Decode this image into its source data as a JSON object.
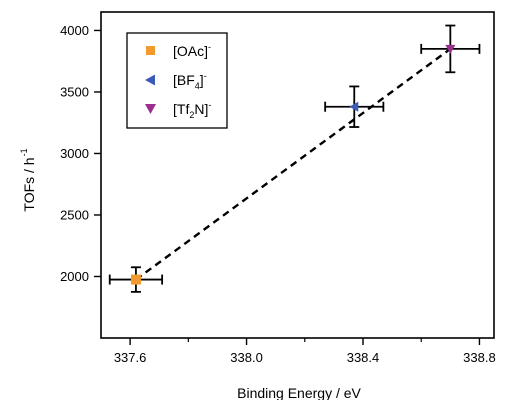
{
  "chart_data": {
    "type": "scatter",
    "xlabel": "Binding Energy / eV",
    "ylabel": "TOFs / h",
    "ylabel_superscript": "-1",
    "xlim": [
      337.5,
      338.85
    ],
    "ylim": [
      1500,
      4150
    ],
    "x_ticks": [
      337.6,
      338.0,
      338.4,
      338.8
    ],
    "x_tick_labels": [
      "337.6",
      "338.0",
      "338.4",
      "338.8"
    ],
    "x_minor_ticks": [
      337.8,
      338.2,
      338.6
    ],
    "y_ticks": [
      2000,
      2500,
      3000,
      3500,
      4000
    ],
    "y_tick_labels": [
      "2000",
      "2500",
      "3000",
      "3500",
      "4000"
    ],
    "grid": false,
    "legend_position": "top-left",
    "fit_line": {
      "style": "dashed",
      "color": "#000000",
      "from": [
        337.62,
        1975
      ],
      "to": [
        338.7,
        3850
      ]
    },
    "series": [
      {
        "name": "[OAc]",
        "superscript": "-",
        "marker": "square",
        "color": "#f29a2e",
        "x": 337.62,
        "y": 1975,
        "x_err": 0.09,
        "y_err": 100
      },
      {
        "name": "[BF4]",
        "superscript": "-",
        "subscript_chars": "4",
        "marker": "triangle-left",
        "color": "#3c5bb4",
        "x": 338.37,
        "y": 3380,
        "x_err": 0.1,
        "y_err": 165
      },
      {
        "name": "[Tf2N]",
        "superscript": "-",
        "subscript_chars": "2",
        "marker": "triangle-down",
        "color": "#9b2f8e",
        "x": 338.7,
        "y": 3850,
        "x_err": 0.1,
        "y_err": 190
      }
    ]
  }
}
